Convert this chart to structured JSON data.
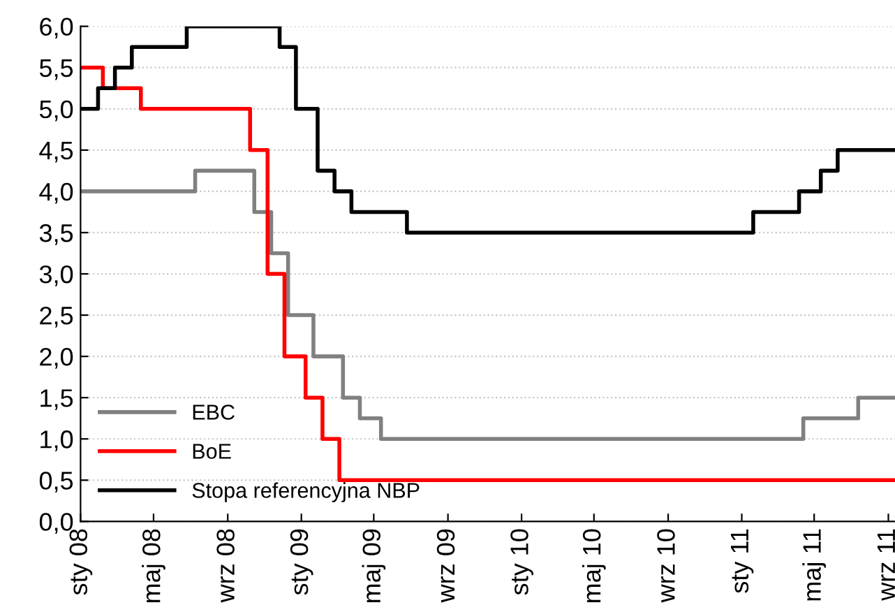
{
  "chart_data": {
    "type": "step",
    "xlim": [
      "2008-01-01",
      "2011-09-12"
    ],
    "ylim": [
      0,
      6
    ],
    "yticks": [
      {
        "value": 0,
        "label": "0,0"
      },
      {
        "value": 0.5,
        "label": "0,5"
      },
      {
        "value": 1,
        "label": "1,0"
      },
      {
        "value": 1.5,
        "label": "1,5"
      },
      {
        "value": 2,
        "label": "2,0"
      },
      {
        "value": 2.5,
        "label": "2,5"
      },
      {
        "value": 3,
        "label": "3,0"
      },
      {
        "value": 3.5,
        "label": "3,5"
      },
      {
        "value": 4,
        "label": "4,0"
      },
      {
        "value": 4.5,
        "label": "4,5"
      },
      {
        "value": 5,
        "label": "5,0"
      },
      {
        "value": 5.5,
        "label": "5,5"
      },
      {
        "value": 6,
        "label": "6,0"
      }
    ],
    "xticks": [
      {
        "value": "2008-01-01",
        "label": "sty 08"
      },
      {
        "value": "2008-05-01",
        "label": "maj 08"
      },
      {
        "value": "2008-09-01",
        "label": "wrz 08"
      },
      {
        "value": "2009-01-01",
        "label": "sty 09"
      },
      {
        "value": "2009-05-01",
        "label": "maj 09"
      },
      {
        "value": "2009-09-01",
        "label": "wrz 09"
      },
      {
        "value": "2010-01-01",
        "label": "sty 10"
      },
      {
        "value": "2010-05-01",
        "label": "maj 10"
      },
      {
        "value": "2010-09-01",
        "label": "wrz 10"
      },
      {
        "value": "2011-01-01",
        "label": "sty 11"
      },
      {
        "value": "2011-05-01",
        "label": "maj 11"
      },
      {
        "value": "2011-09-01",
        "label": "wrz 11"
      }
    ],
    "grid": "y",
    "legend": "bottom left",
    "line_style": "solid",
    "series": [
      {
        "name": "EBC",
        "color": "#808080",
        "x": [
          "2008-01-01",
          "2008-07-09",
          "2008-10-15",
          "2008-11-12",
          "2008-12-10",
          "2009-01-21",
          "2009-03-11",
          "2009-04-08",
          "2009-05-13",
          "2011-04-13",
          "2011-07-13",
          "2011-09-12"
        ],
        "values": [
          4.0,
          4.25,
          3.75,
          3.25,
          2.5,
          2.0,
          1.5,
          1.25,
          1.0,
          1.25,
          1.5,
          1.5
        ]
      },
      {
        "name": "BoE",
        "color": "#ff0000",
        "x": [
          "2008-01-01",
          "2008-02-07",
          "2008-04-10",
          "2008-10-08",
          "2008-11-06",
          "2008-12-04",
          "2009-01-08",
          "2009-02-05",
          "2009-03-05",
          "2011-09-12"
        ],
        "values": [
          5.5,
          5.25,
          5.0,
          4.5,
          3.0,
          2.0,
          1.5,
          1.0,
          0.5,
          0.5
        ]
      },
      {
        "name": "Stopa referencyjna NBP",
        "color": "#000000",
        "x": [
          "2008-01-01",
          "2008-01-30",
          "2008-02-27",
          "2008-03-26",
          "2008-06-25",
          "2008-11-26",
          "2008-12-23",
          "2009-01-28",
          "2009-02-25",
          "2009-03-25",
          "2009-06-25",
          "2011-01-20",
          "2011-04-06",
          "2011-05-12",
          "2011-06-09",
          "2011-09-12"
        ],
        "values": [
          5.0,
          5.25,
          5.5,
          5.75,
          6.0,
          5.75,
          5.0,
          4.25,
          4.0,
          3.75,
          3.5,
          3.75,
          4.0,
          4.25,
          4.5,
          4.5
        ]
      }
    ]
  }
}
